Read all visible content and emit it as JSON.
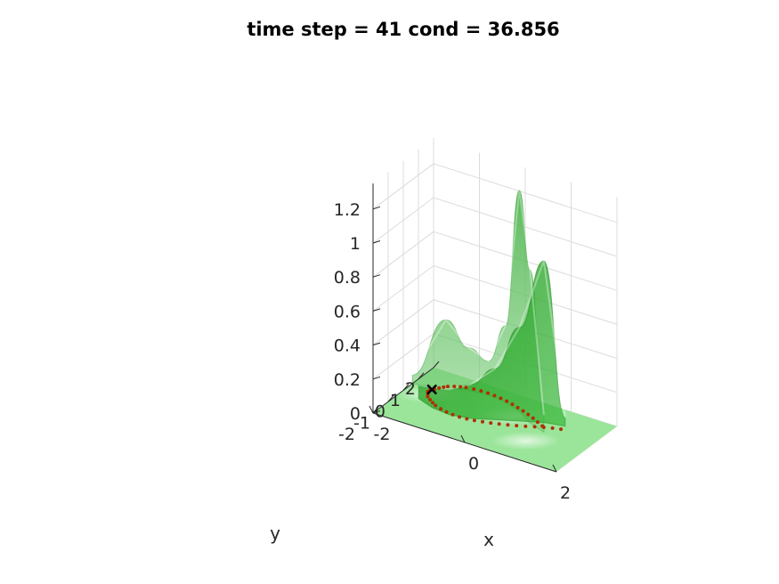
{
  "chart_data": {
    "type": "surface3d",
    "title": "time step = 41 cond = 36.856",
    "xlabel": "x",
    "ylabel": "y",
    "zlabel": "",
    "xlim": [
      -2,
      2
    ],
    "ylim": [
      -2,
      2
    ],
    "zlim": [
      0,
      1.35
    ],
    "x_ticks": [
      {
        "value": -2,
        "label": "-2"
      },
      {
        "value": 0,
        "label": "0"
      },
      {
        "value": 2,
        "label": "2"
      }
    ],
    "y_ticks": [
      {
        "value": -2,
        "label": "-2"
      },
      {
        "value": -1,
        "label": "-1"
      },
      {
        "value": 0,
        "label": "0"
      },
      {
        "value": 1,
        "label": "1"
      },
      {
        "value": 2,
        "label": "2"
      }
    ],
    "z_ticks": [
      {
        "value": 0,
        "label": "0"
      },
      {
        "value": 0.2,
        "label": "0.2"
      },
      {
        "value": 0.4,
        "label": "0.4"
      },
      {
        "value": 0.6,
        "label": "0.6"
      },
      {
        "value": 0.8,
        "label": "0.8"
      },
      {
        "value": 1.0,
        "label": "1"
      },
      {
        "value": 1.2,
        "label": "1.2"
      }
    ],
    "grid": true,
    "surface_color": "#1fa21f",
    "floor_color": "#9be59b",
    "marker_color": "#b03000",
    "marker_start_color": "#000000",
    "surface_profiles": {
      "front_ridge": {
        "x": [
          -1.6,
          -1.2,
          -0.8,
          -0.4,
          0.0,
          0.4,
          0.8,
          1.2
        ],
        "y": [
          -0.2,
          -0.5,
          -0.6,
          -0.4,
          0.0,
          0.4,
          0.8,
          1.0
        ],
        "z": [
          0.08,
          0.12,
          0.15,
          0.2,
          0.3,
          0.55,
          0.95,
          0.05
        ]
      },
      "back_ridge": {
        "x": [
          -2.0,
          -1.4,
          -1.0,
          -0.6,
          -0.2,
          0.2,
          0.6,
          1.0
        ],
        "y": [
          0.6,
          1.0,
          1.3,
          1.4,
          1.3,
          1.0,
          0.5,
          0.2
        ],
        "z": [
          0.05,
          0.4,
          0.25,
          0.2,
          0.45,
          1.3,
          0.9,
          0.1
        ]
      }
    },
    "particles": {
      "x": [
        -1.55,
        -1.5,
        -1.45,
        -1.4,
        -1.3,
        -1.2,
        -1.1,
        -0.95,
        -0.8,
        -0.65,
        -0.5,
        -0.35,
        -0.2,
        -0.05,
        0.1,
        0.25,
        0.4,
        0.55,
        0.7,
        0.85,
        -1.6,
        -1.6,
        -1.55,
        -1.5,
        -1.4,
        -1.3,
        -1.2,
        -1.05,
        -0.9,
        -0.75,
        -0.6,
        -0.45,
        -0.3,
        -0.15,
        0.0,
        0.15,
        0.3,
        0.45,
        0.6,
        0.75,
        0.9,
        1.05,
        1.2
      ],
      "y": [
        0.7,
        0.85,
        1.0,
        1.12,
        1.25,
        1.35,
        1.42,
        1.48,
        1.5,
        1.5,
        1.48,
        1.44,
        1.38,
        1.3,
        1.2,
        1.1,
        0.98,
        0.85,
        0.7,
        0.55,
        0.55,
        0.4,
        0.25,
        0.1,
        -0.05,
        -0.18,
        -0.3,
        -0.4,
        -0.48,
        -0.52,
        -0.53,
        -0.5,
        -0.45,
        -0.37,
        -0.28,
        -0.18,
        -0.06,
        0.06,
        0.2,
        0.35,
        0.5,
        0.62,
        0.72
      ]
    }
  }
}
